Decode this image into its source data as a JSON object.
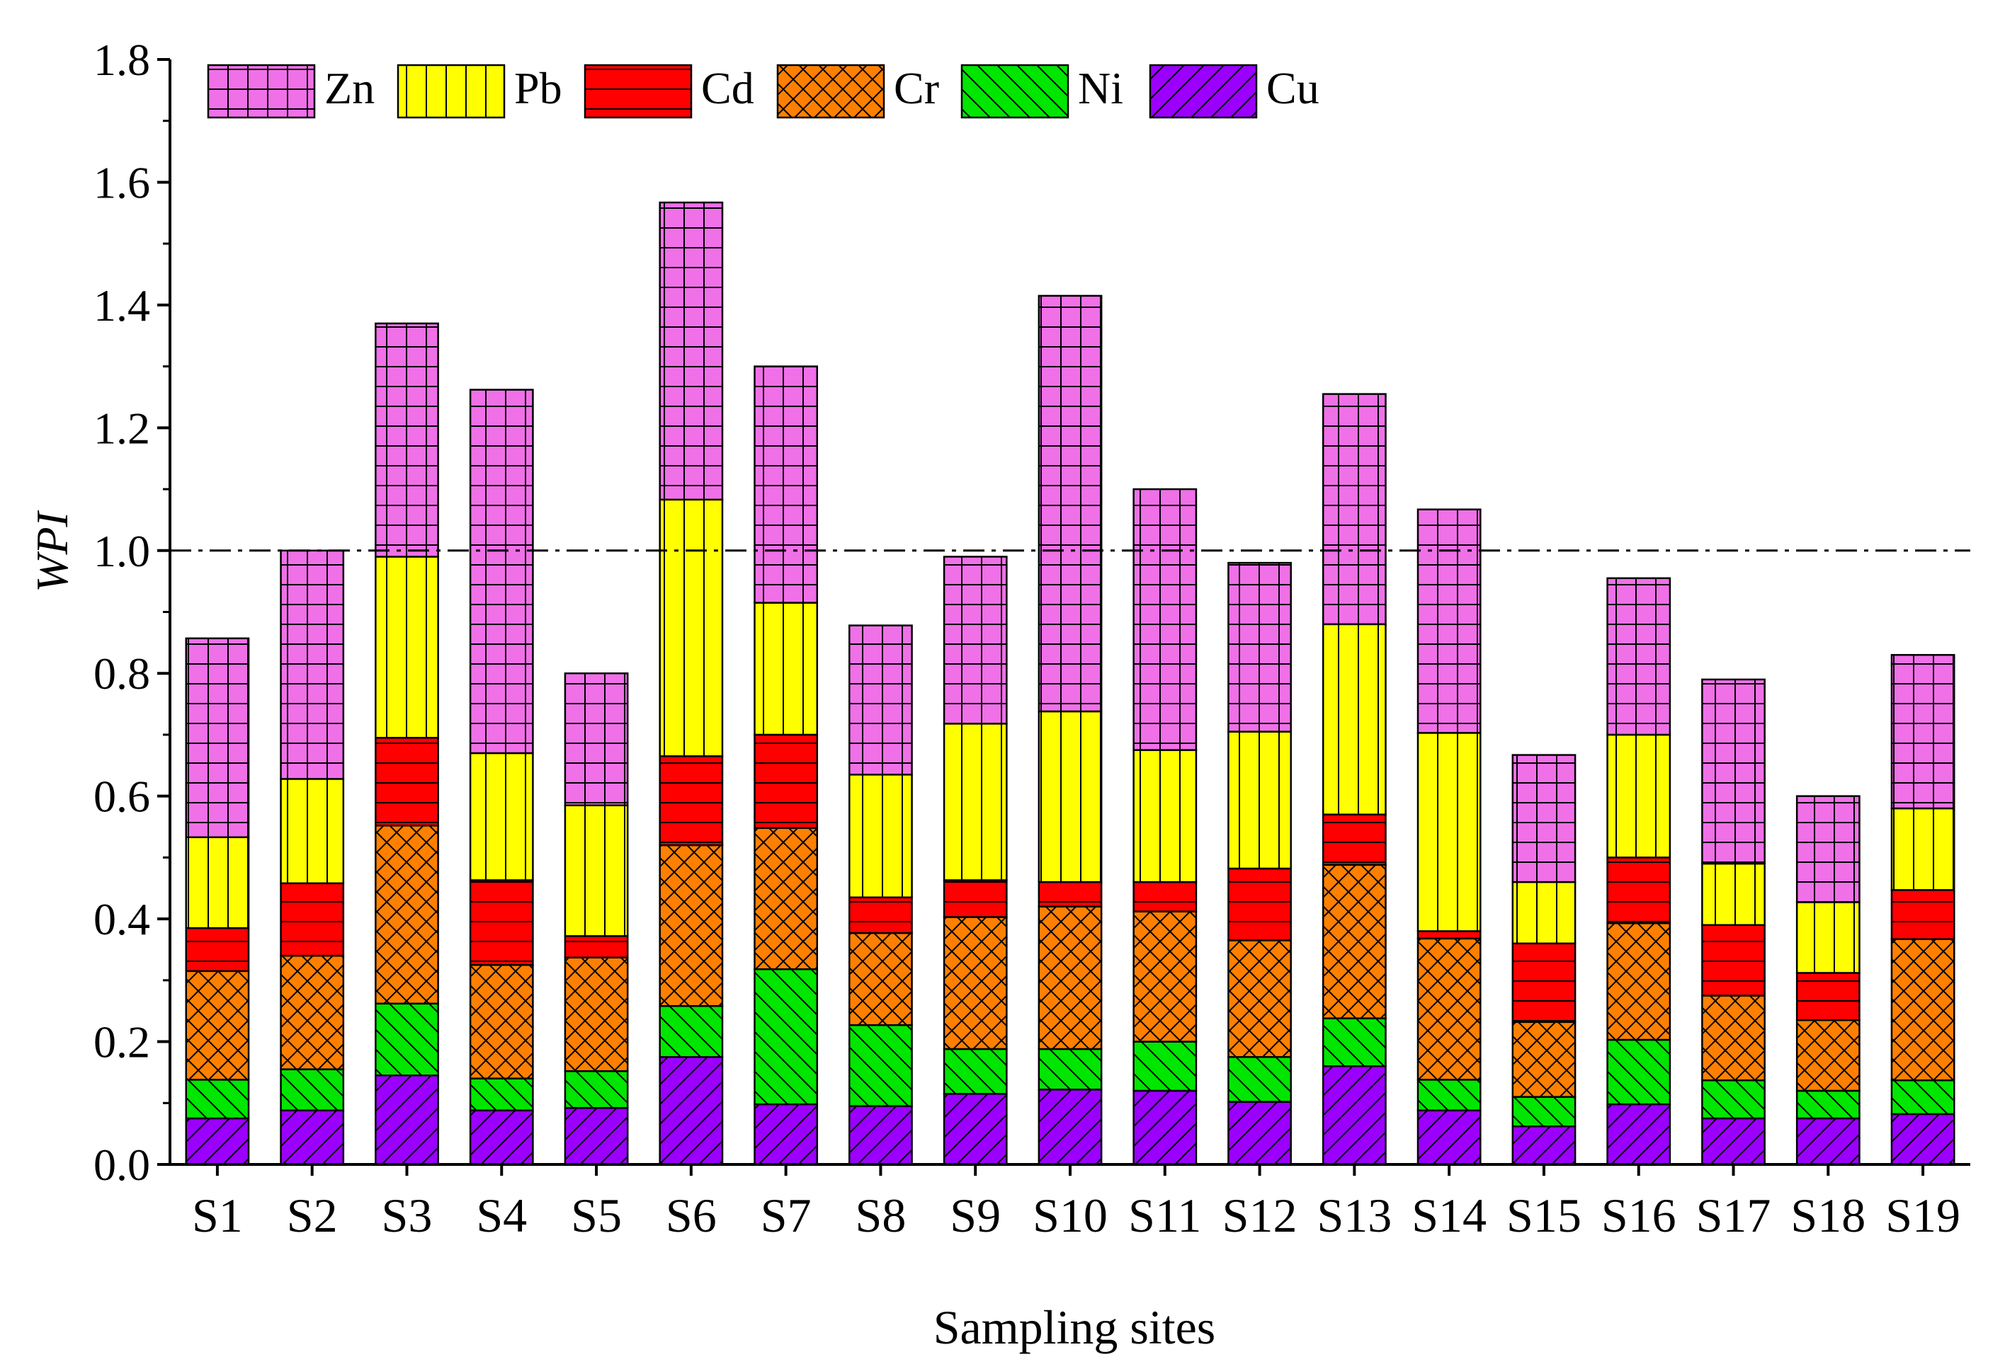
{
  "chart_data": {
    "type": "bar",
    "stacked": true,
    "xlabel": "Sampling sites",
    "ylabel": "WPI",
    "ylim": [
      0,
      1.8
    ],
    "yticks": [
      "0.0",
      "0.2",
      "0.4",
      "0.6",
      "0.8",
      "1.0",
      "1.2",
      "1.4",
      "1.6",
      "1.8"
    ],
    "reference_line": {
      "value": 1.0,
      "style": "dash-dot"
    },
    "legend_position": "top-left",
    "categories": [
      "S1",
      "S2",
      "S3",
      "S4",
      "S5",
      "S6",
      "S7",
      "S8",
      "S9",
      "S10",
      "S11",
      "S12",
      "S13",
      "S14",
      "S15",
      "S16",
      "S17",
      "S18",
      "S19"
    ],
    "series": [
      {
        "name": "Cu",
        "color": "#9b00ff",
        "pattern": "diag-right",
        "values": [
          0.075,
          0.088,
          0.145,
          0.088,
          0.092,
          0.175,
          0.098,
          0.095,
          0.115,
          0.122,
          0.12,
          0.102,
          0.16,
          0.088,
          0.062,
          0.098,
          0.075,
          0.075,
          0.082
        ]
      },
      {
        "name": "Ni",
        "color": "#00e600",
        "pattern": "diag-left",
        "values": [
          0.063,
          0.067,
          0.117,
          0.052,
          0.06,
          0.083,
          0.22,
          0.132,
          0.073,
          0.066,
          0.08,
          0.073,
          0.078,
          0.05,
          0.048,
          0.105,
          0.062,
          0.045,
          0.055
        ]
      },
      {
        "name": "Cr",
        "color": "#ff8000",
        "pattern": "crosshatch",
        "values": [
          0.177,
          0.185,
          0.29,
          0.185,
          0.185,
          0.262,
          0.23,
          0.15,
          0.215,
          0.232,
          0.212,
          0.19,
          0.25,
          0.23,
          0.122,
          0.19,
          0.138,
          0.115,
          0.23
        ]
      },
      {
        "name": "Cd",
        "color": "#ff0000",
        "pattern": "horizontal",
        "values": [
          0.07,
          0.118,
          0.143,
          0.138,
          0.035,
          0.145,
          0.152,
          0.058,
          0.06,
          0.04,
          0.048,
          0.117,
          0.082,
          0.012,
          0.128,
          0.107,
          0.115,
          0.077,
          0.08
        ]
      },
      {
        "name": "Pb",
        "color": "#ffff00",
        "pattern": "vertical",
        "values": [
          0.148,
          0.17,
          0.295,
          0.207,
          0.213,
          0.418,
          0.215,
          0.2,
          0.255,
          0.278,
          0.215,
          0.223,
          0.31,
          0.323,
          0.1,
          0.2,
          0.1,
          0.115,
          0.133
        ]
      },
      {
        "name": "Zn",
        "color": "#f070e8",
        "pattern": "grid",
        "values": [
          0.324,
          0.372,
          0.38,
          0.592,
          0.215,
          0.484,
          0.385,
          0.243,
          0.272,
          0.677,
          0.425,
          0.275,
          0.375,
          0.364,
          0.207,
          0.255,
          0.3,
          0.173,
          0.25
        ]
      }
    ],
    "legend_order": [
      "Zn",
      "Pb",
      "Cd",
      "Cr",
      "Ni",
      "Cu"
    ]
  }
}
